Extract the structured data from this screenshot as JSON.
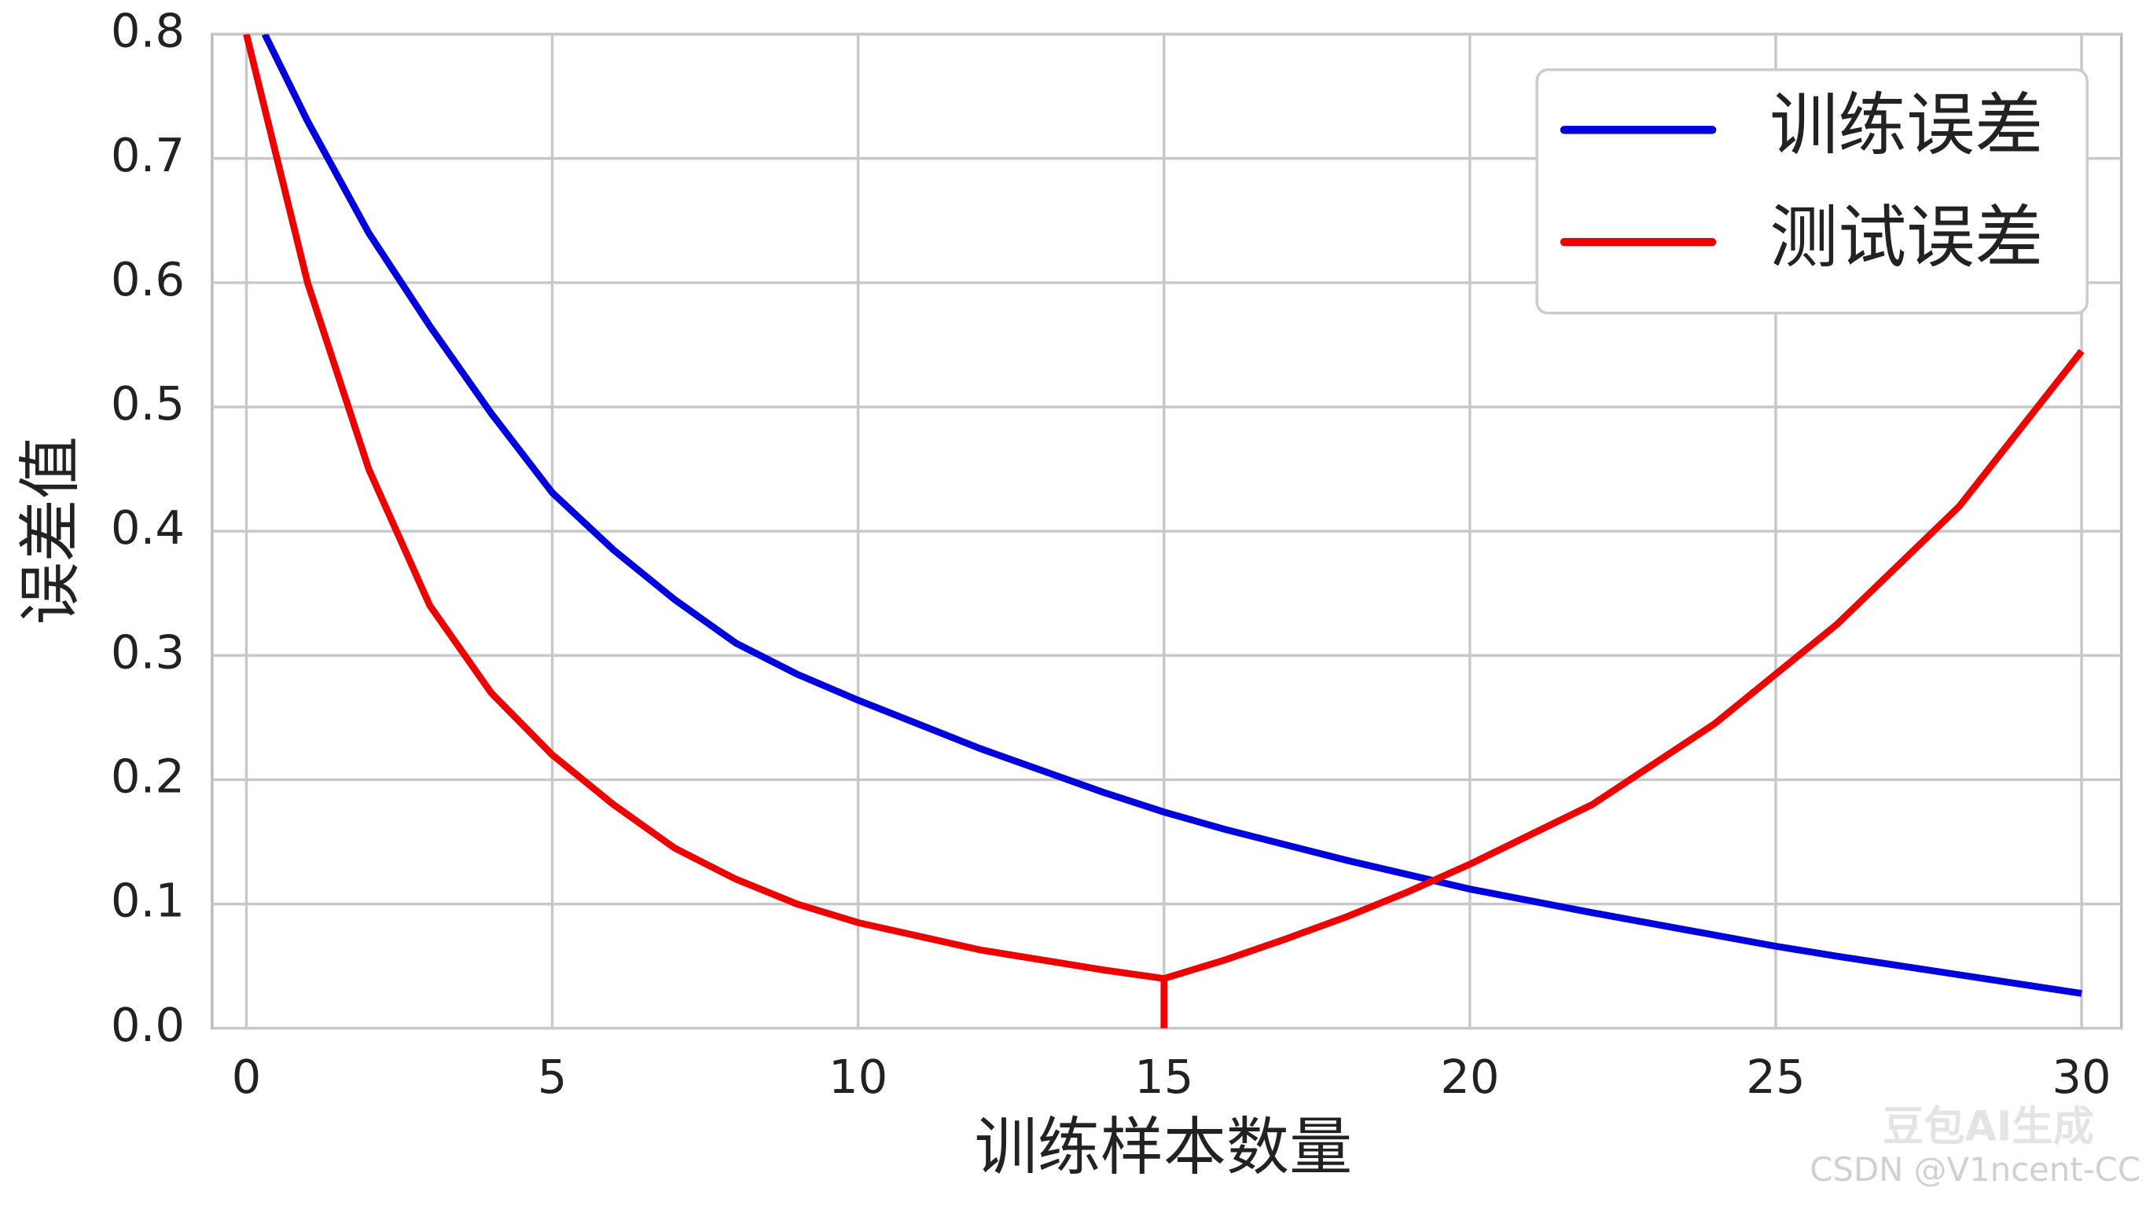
{
  "chart_data": {
    "type": "line",
    "xlabel": "训练样本数量",
    "ylabel": "误差值",
    "xlim": [
      -0.56,
      30.65
    ],
    "ylim": [
      0,
      0.8
    ],
    "xticks": [
      0,
      5,
      10,
      15,
      20,
      25,
      30
    ],
    "yticks": [
      {
        "value": 0,
        "label": "0.0"
      },
      0.1,
      0.2,
      0.3,
      0.4,
      0.5,
      0.6,
      0.7,
      0.8
    ],
    "grid": true,
    "legend": "upper right",
    "series": [
      {
        "name": "训练误差",
        "color": "#0000dd",
        "x": [
          0.3,
          1,
          2,
          3,
          4,
          5,
          6,
          7,
          8,
          9,
          10,
          12,
          14,
          15,
          16,
          18,
          20,
          22,
          24,
          25,
          26,
          28,
          30
        ],
        "values": [
          0.8,
          0.73,
          0.64,
          0.565,
          0.495,
          0.431,
          0.385,
          0.345,
          0.31,
          0.285,
          0.264,
          0.225,
          0.19,
          0.174,
          0.16,
          0.135,
          0.112,
          0.093,
          0.075,
          0.066,
          0.058,
          0.043,
          0.028
        ]
      },
      {
        "name": "测试误差",
        "color": "#ee0000",
        "x": [
          0,
          1,
          2,
          3,
          4,
          5,
          6,
          7,
          8,
          9,
          10,
          12,
          14,
          15,
          15,
          15,
          16,
          17,
          18,
          19,
          20,
          22,
          24,
          25,
          26,
          28,
          30
        ],
        "values": [
          0.8,
          0.6,
          0.45,
          0.34,
          0.27,
          0.22,
          0.18,
          0.145,
          0.12,
          0.1,
          0.085,
          0.063,
          0.047,
          0.04,
          0,
          0.04,
          0.055,
          0.072,
          0.09,
          0.11,
          0.132,
          0.18,
          0.245,
          0.285,
          0.325,
          0.42,
          0.545
        ]
      }
    ]
  },
  "watermark": {
    "brand": "豆包AI生成",
    "credit": "CSDN @V1ncent-CC"
  }
}
